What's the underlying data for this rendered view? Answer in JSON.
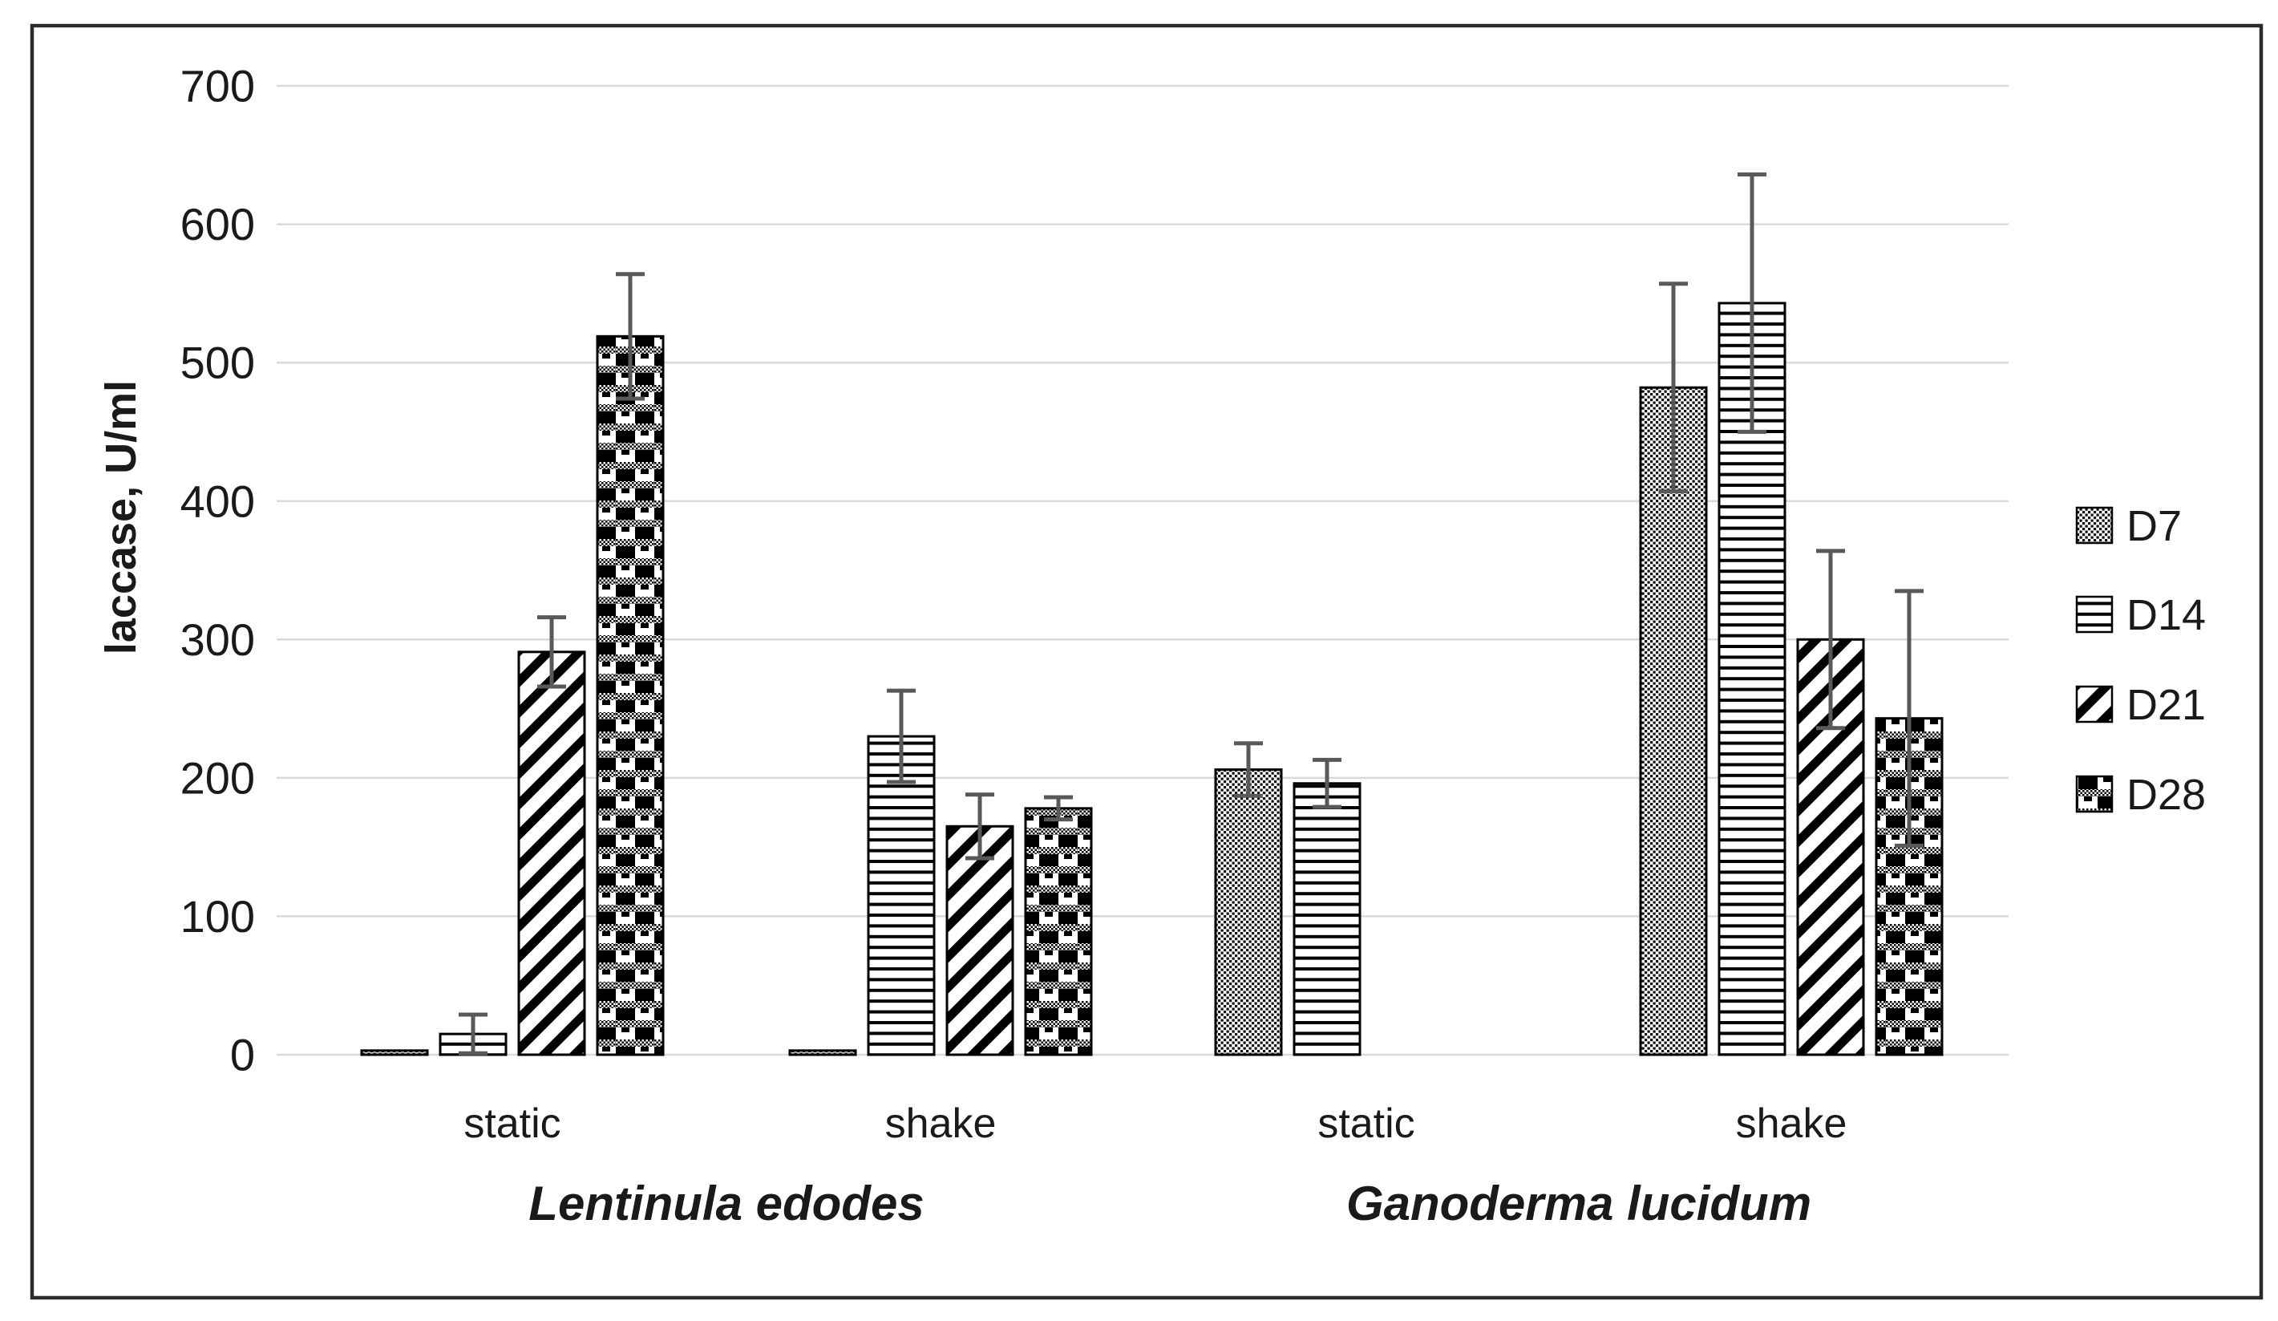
{
  "figure": {
    "border_color": "#2b2b2b",
    "background": "#ffffff"
  },
  "colors": {
    "gridline": "#d9d9d9",
    "error_bar": "#595959",
    "bar_outline": "#000000",
    "text": "#1a1a1a"
  },
  "legend": {
    "items": [
      {
        "label": "D7",
        "swatch": "dotted-grid-pattern"
      },
      {
        "label": "D14",
        "swatch": "horizontal-lines-pattern"
      },
      {
        "label": "D21",
        "swatch": "diagonal-stripes-pattern"
      },
      {
        "label": "D28",
        "swatch": "checker-dot-pattern"
      }
    ]
  },
  "chart_data": {
    "type": "bar",
    "title": "",
    "xlabel": "",
    "ylabel": "laccase, U/ml",
    "ylim": [
      0,
      700
    ],
    "yticks": [
      0,
      100,
      200,
      300,
      400,
      500,
      600,
      700
    ],
    "grid": true,
    "legend_position": "right",
    "series_names": [
      "D7",
      "D14",
      "D21",
      "D28"
    ],
    "condition_labels": [
      "static",
      "shake",
      "static",
      "shake"
    ],
    "species_labels": [
      "Lentinula edodes",
      "Ganoderma lucidum"
    ],
    "groups": [
      {
        "species": "Lentinula edodes",
        "condition": "static",
        "values": [
          3,
          15,
          291,
          519
        ],
        "errors": [
          0,
          14,
          25,
          45
        ]
      },
      {
        "species": "Lentinula edodes",
        "condition": "shake",
        "values": [
          3,
          230,
          165,
          178
        ],
        "errors": [
          0,
          33,
          23,
          8
        ]
      },
      {
        "species": "Ganoderma lucidum",
        "condition": "static",
        "values": [
          206,
          196,
          0,
          0
        ],
        "errors": [
          19,
          17,
          0,
          0
        ]
      },
      {
        "species": "Ganoderma lucidum",
        "condition": "shake",
        "values": [
          482,
          543,
          300,
          243
        ],
        "errors": [
          75,
          93,
          64,
          92
        ]
      }
    ]
  }
}
